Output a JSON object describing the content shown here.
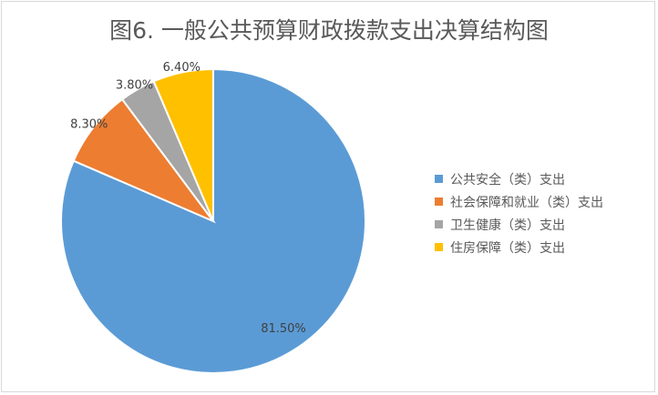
{
  "chart_data": {
    "type": "pie",
    "title": "图6. 一般公共预算财政拨款支出决算结构图",
    "categories": [
      "公共安全（类）支出",
      "社会保障和就业（类）支出",
      "卫生健康（类）支出",
      "住房保障（类）支出"
    ],
    "values": [
      81.5,
      8.3,
      3.8,
      6.4
    ],
    "data_labels": [
      "81.50%",
      "8.30%",
      "3.80%",
      "6.40%"
    ],
    "colors": [
      "#5B9BD5",
      "#ED7D31",
      "#A5A5A5",
      "#FFC000"
    ],
    "legend_position": "right",
    "start_angle": "top, clockwise"
  }
}
